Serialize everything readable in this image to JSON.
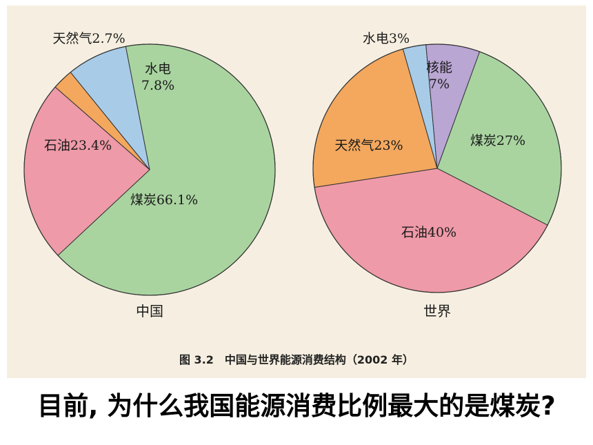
{
  "chart_data": [
    {
      "type": "pie",
      "caption": "中国",
      "slices": [
        {
          "name": "煤炭",
          "value": 66.1,
          "label": "煤炭66.1%",
          "color": "#a9d4a0"
        },
        {
          "name": "石油",
          "value": 23.4,
          "label": "石油23.4%",
          "color": "#ee9aa8"
        },
        {
          "name": "天然气",
          "value": 2.7,
          "label": "天然气2.7%",
          "color": "#f3a85e"
        },
        {
          "name": "水电",
          "value": 7.8,
          "label": "水电\n7.8%",
          "color": "#a8cbe8"
        }
      ]
    },
    {
      "type": "pie",
      "caption": "世界",
      "slices": [
        {
          "name": "煤炭",
          "value": 27,
          "label": "煤炭27%",
          "color": "#a9d4a0"
        },
        {
          "name": "石油",
          "value": 40,
          "label": "石油40%",
          "color": "#ee9aa8"
        },
        {
          "name": "天然气",
          "value": 23,
          "label": "天然气23%",
          "color": "#f3a85e"
        },
        {
          "name": "水电",
          "value": 3,
          "label": "水电3%",
          "color": "#a8cbe8"
        },
        {
          "name": "核能",
          "value": 7,
          "label": "核能\n7%",
          "color": "#b9a6d3"
        }
      ]
    }
  ],
  "figure_caption": "图 3.2　中国与世界能源消费结构（2002 年）",
  "question": "目前, 为什么我国能源消费比例最大的是煤炭?"
}
